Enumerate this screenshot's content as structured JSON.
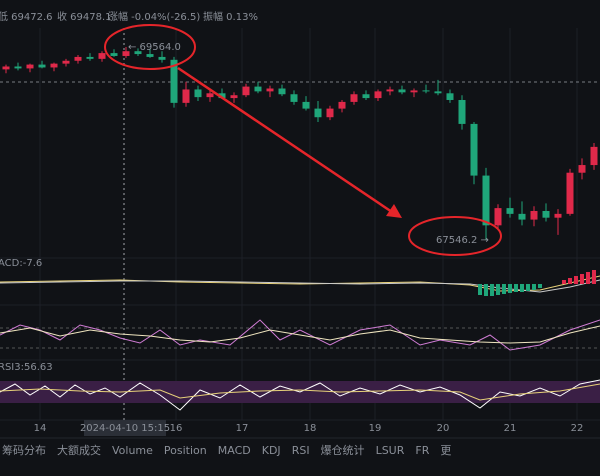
{
  "header": {
    "low": "低 69472.6",
    "close": "收 69478.1",
    "change": "涨幅 -0.04%(-26.5)",
    "amplitude": "振幅 0.13%"
  },
  "price_chart": {
    "ylim": [
      67390,
      70055
    ],
    "up_color": "#e0294a",
    "down_color": "#1fa67a",
    "high_label": "← 69564.0",
    "low_label": "67546.2 →",
    "candles": [
      [
        69330,
        69380,
        69290,
        69360
      ],
      [
        69360,
        69400,
        69320,
        69340
      ],
      [
        69340,
        69390,
        69300,
        69380
      ],
      [
        69380,
        69420,
        69340,
        69350
      ],
      [
        69350,
        69400,
        69310,
        69390
      ],
      [
        69390,
        69440,
        69360,
        69420
      ],
      [
        69420,
        69480,
        69390,
        69460
      ],
      [
        69460,
        69500,
        69420,
        69440
      ],
      [
        69440,
        69520,
        69410,
        69500
      ],
      [
        69500,
        69540,
        69460,
        69470
      ],
      [
        69470,
        69564,
        69450,
        69520
      ],
      [
        69520,
        69550,
        69470,
        69490
      ],
      [
        69490,
        69540,
        69450,
        69460
      ],
      [
        69460,
        69520,
        69400,
        69430
      ],
      [
        69430,
        69460,
        68930,
        68980
      ],
      [
        68980,
        69200,
        68940,
        69120
      ],
      [
        69120,
        69160,
        69000,
        69040
      ],
      [
        69040,
        69110,
        68990,
        69080
      ],
      [
        69080,
        69130,
        69020,
        69030
      ],
      [
        69030,
        69090,
        68980,
        69060
      ],
      [
        69060,
        69180,
        69040,
        69150
      ],
      [
        69150,
        69200,
        69080,
        69100
      ],
      [
        69100,
        69160,
        69040,
        69130
      ],
      [
        69130,
        69170,
        69050,
        69070
      ],
      [
        69070,
        69110,
        68960,
        68990
      ],
      [
        68990,
        69050,
        68900,
        68920
      ],
      [
        68920,
        69000,
        68780,
        68830
      ],
      [
        68830,
        68950,
        68800,
        68920
      ],
      [
        68920,
        69010,
        68880,
        68990
      ],
      [
        68990,
        69100,
        68960,
        69070
      ],
      [
        69070,
        69110,
        69010,
        69030
      ],
      [
        69030,
        69120,
        69000,
        69100
      ],
      [
        69100,
        69150,
        69060,
        69120
      ],
      [
        69120,
        69160,
        69070,
        69090
      ],
      [
        69090,
        69130,
        69040,
        69110
      ],
      [
        69110,
        69170,
        69080,
        69100
      ],
      [
        69100,
        69220,
        69060,
        69080
      ],
      [
        69080,
        69120,
        68980,
        69010
      ],
      [
        69010,
        69060,
        68700,
        68760
      ],
      [
        68760,
        68780,
        68130,
        68220
      ],
      [
        68220,
        68300,
        67546,
        67700
      ],
      [
        67700,
        67920,
        67650,
        67880
      ],
      [
        67880,
        67990,
        67780,
        67820
      ],
      [
        67820,
        67950,
        67700,
        67760
      ],
      [
        67760,
        67900,
        67690,
        67850
      ],
      [
        67850,
        67930,
        67740,
        67780
      ],
      [
        67780,
        67870,
        67600,
        67820
      ],
      [
        67820,
        68290,
        67800,
        68250
      ],
      [
        68250,
        68400,
        68180,
        68330
      ],
      [
        68330,
        68560,
        68280,
        68520
      ]
    ]
  },
  "x_axis": {
    "labels": [
      "14",
      "16",
      "17",
      "18",
      "19",
      "20",
      "21",
      "22"
    ],
    "crosshair_date": "2024-04-10 15:15"
  },
  "indicators": {
    "macd": "ACD:-7.6",
    "rsi": "RSI3:56.63"
  },
  "tabs": [
    "筹码分布",
    "大额成交",
    "Volume",
    "Position",
    "MACD",
    "KDJ",
    "RSI",
    "爆仓统计",
    "LSUR",
    "FR",
    "更"
  ]
}
